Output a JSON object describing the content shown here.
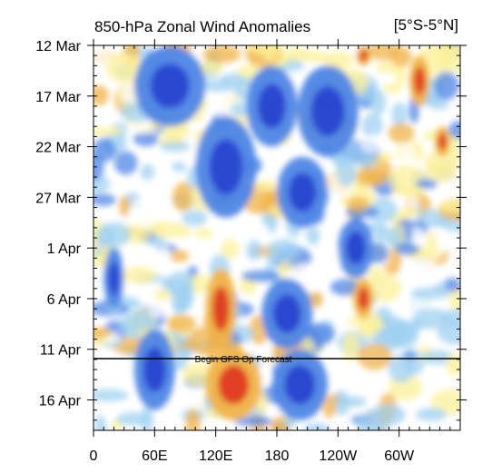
{
  "title": "850-hPa Zonal Wind Anomalies",
  "region_label": "[5°S-5°N]",
  "annotation": "Begin GFS Op Forecast",
  "colors": {
    "strong_neg": "#2845d0",
    "mod_neg": "#4f86e6",
    "weak_neg": "#9fd0f2",
    "near_zero": "#ffffff",
    "weak_pos": "#fcf09a",
    "mod_pos": "#f0b348",
    "strong_pos": "#df3b22",
    "extreme_pos": "#c02416",
    "forecast_line": "#000000"
  },
  "chart_data": {
    "type": "heatmap",
    "title": "850-hPa Zonal Wind Anomalies",
    "subtitle": "[5°S-5°N]",
    "x_ticks": [
      "0",
      "60E",
      "120E",
      "180",
      "120W",
      "60W"
    ],
    "y_ticks": [
      "12 Mar",
      "17 Mar",
      "22 Mar",
      "27 Mar",
      "1 Apr",
      "6 Apr",
      "11 Apr",
      "16 Apr"
    ],
    "forecast_start": "11 Apr",
    "forecast_label": "Begin GFS Op Forecast",
    "negative_anomaly_regions": [
      {
        "lon": [
          40,
          110
        ],
        "date": [
          "12 Mar",
          "20 Mar"
        ]
      },
      {
        "lon": [
          150,
          200
        ],
        "date": [
          "14 Mar",
          "22 Mar"
        ]
      },
      {
        "lon": [
          200,
          260
        ],
        "date": [
          "14 Mar",
          "23 Mar"
        ]
      },
      {
        "lon": [
          100,
          160
        ],
        "date": [
          "19 Mar",
          "29 Mar"
        ]
      },
      {
        "lon": [
          180,
          230
        ],
        "date": [
          "23 Mar",
          "30 Mar"
        ]
      },
      {
        "lon": [
          10,
          30
        ],
        "date": [
          "1 Apr",
          "7 Apr"
        ]
      },
      {
        "lon": [
          240,
          275
        ],
        "date": [
          "29 Mar",
          "4 Apr"
        ]
      },
      {
        "lon": [
          165,
          215
        ],
        "date": [
          "4 Apr",
          "11 Apr"
        ]
      },
      {
        "lon": [
          40,
          80
        ],
        "date": [
          "9 Apr",
          "17 Apr"
        ]
      },
      {
        "lon": [
          175,
          230
        ],
        "date": [
          "11 Apr",
          "18 Apr"
        ]
      }
    ],
    "positive_anomaly_regions": [
      {
        "lon": [
          260,
          270
        ],
        "date": [
          "12 Mar",
          "14 Mar"
        ]
      },
      {
        "lon": [
          310,
          330
        ],
        "date": [
          "13 Mar",
          "18 Mar"
        ]
      },
      {
        "lon": [
          335,
          350
        ],
        "date": [
          "20 Mar",
          "23 Mar"
        ]
      },
      {
        "lon": [
          110,
          140
        ],
        "date": [
          "3 Apr",
          "11 Apr"
        ]
      },
      {
        "lon": [
          255,
          275
        ],
        "date": [
          "4 Apr",
          "8 Apr"
        ]
      },
      {
        "lon": [
          110,
          165
        ],
        "date": [
          "11 Apr",
          "18 Apr"
        ]
      }
    ]
  }
}
